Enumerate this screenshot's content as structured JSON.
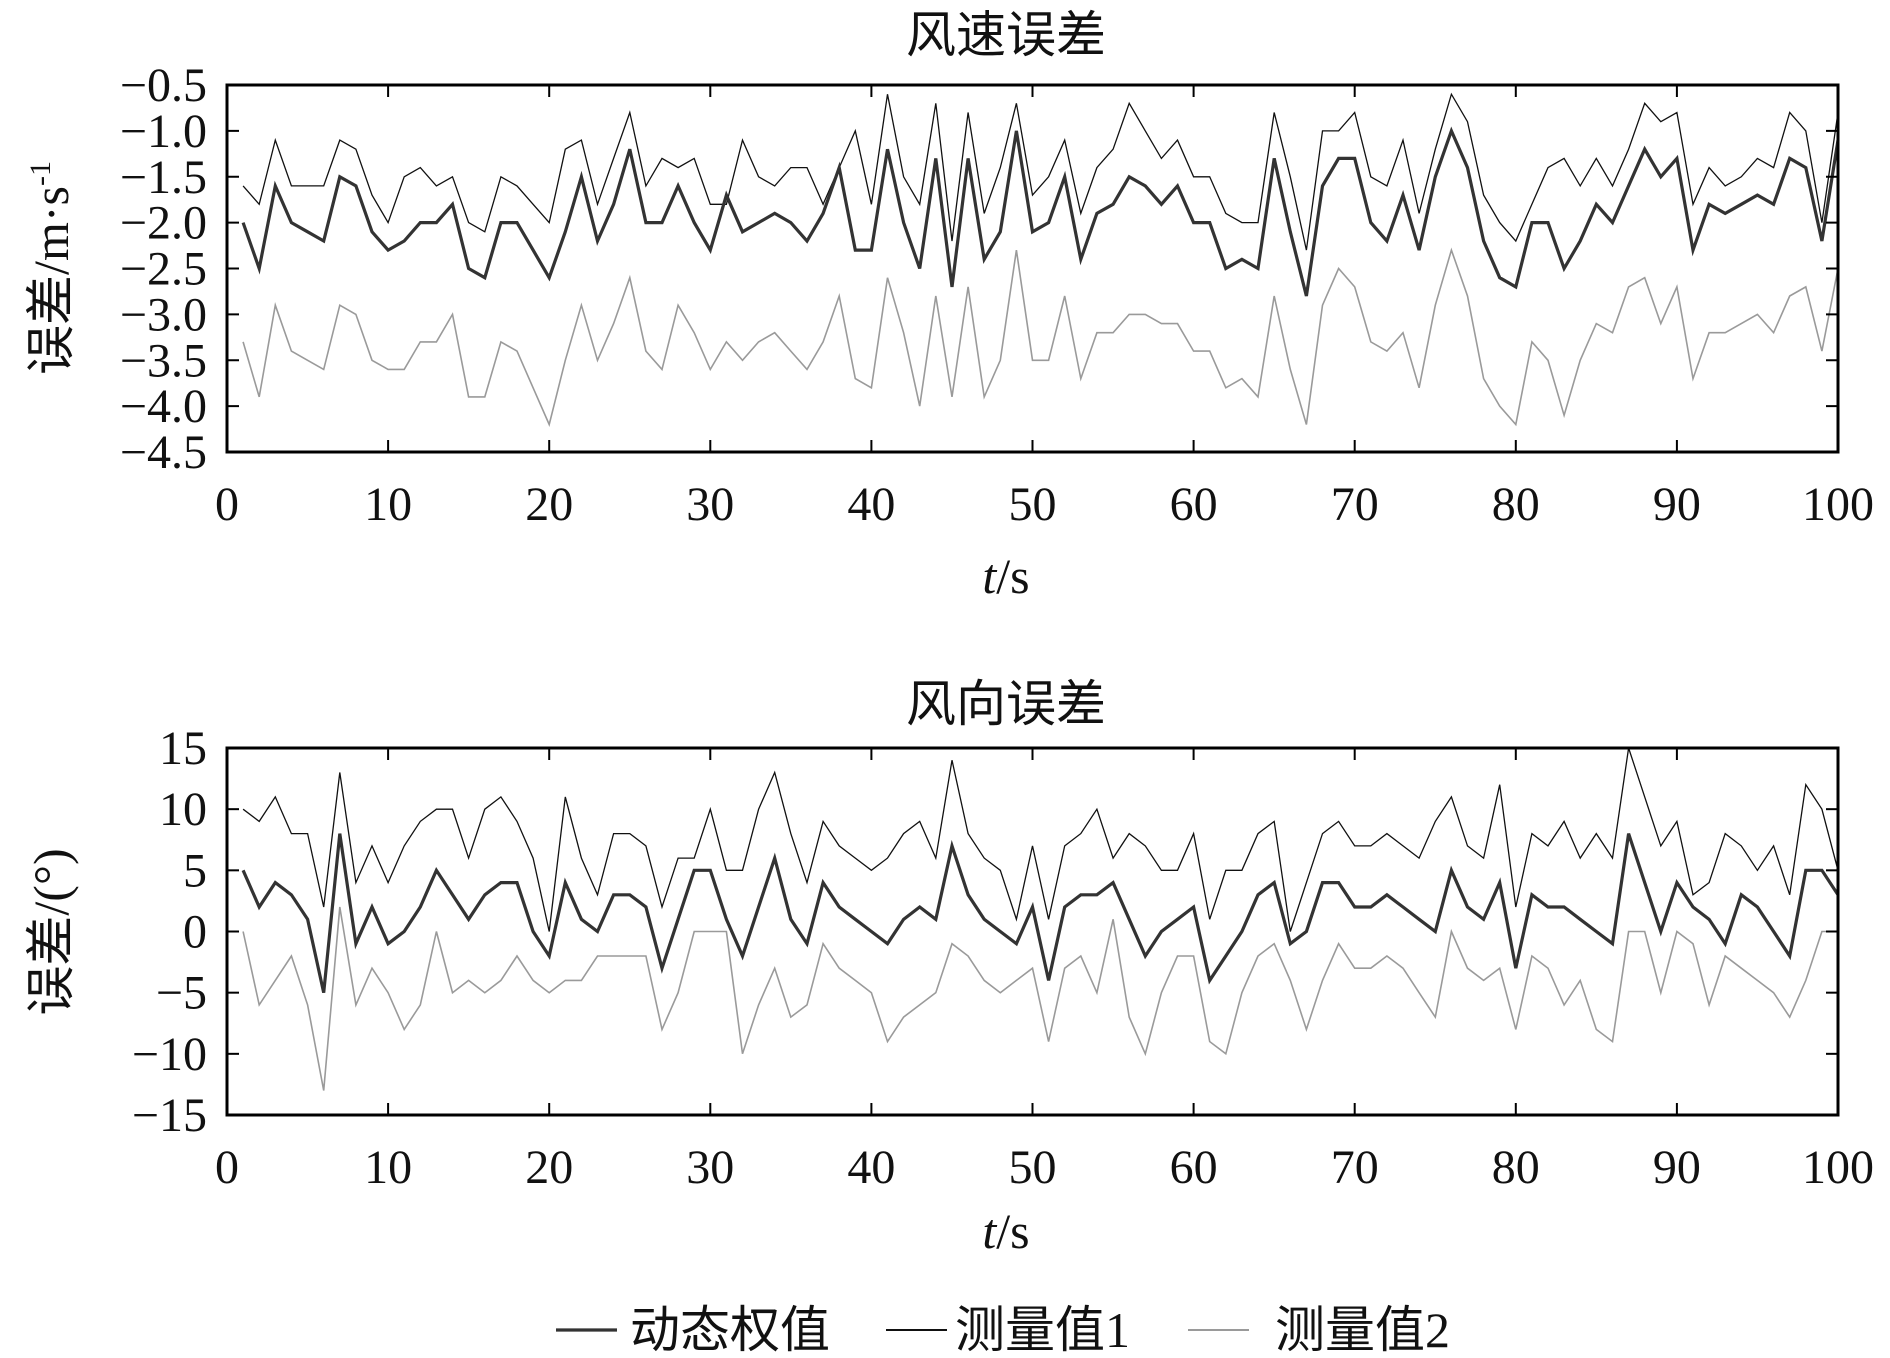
{
  "legend": {
    "items": [
      {
        "label": "动态权值",
        "color": "#333333",
        "width": 3.2
      },
      {
        "label": "测量值1",
        "color": "#111111",
        "width": 1.3
      },
      {
        "label": "测量值2",
        "color": "#9a9a9a",
        "width": 1.6
      }
    ]
  },
  "chart_data": [
    {
      "type": "line",
      "title": "风速误差",
      "xlabel_italic": "t",
      "xlabel_rest": "/s",
      "ylabel": "误差/m·s",
      "ylabel_sup": "-1",
      "xlim": [
        0,
        100
      ],
      "ylim": [
        -4.5,
        -0.5
      ],
      "xticks": [
        0,
        10,
        20,
        30,
        40,
        50,
        60,
        70,
        80,
        90,
        100
      ],
      "yticks": [
        -0.5,
        -1.0,
        -1.5,
        -2.0,
        -2.5,
        -3.0,
        -3.5,
        -4.0,
        -4.5
      ],
      "yticklabels": [
        "−0.5",
        "−1.0",
        "−1.5",
        "−2.0",
        "−2.5",
        "−3.0",
        "−3.5",
        "−4.0",
        "−4.5"
      ],
      "x": [
        1,
        2,
        3,
        4,
        5,
        6,
        7,
        8,
        9,
        10,
        11,
        12,
        13,
        14,
        15,
        16,
        17,
        18,
        19,
        20,
        21,
        22,
        23,
        24,
        25,
        26,
        27,
        28,
        29,
        30,
        31,
        32,
        33,
        34,
        35,
        36,
        37,
        38,
        39,
        40,
        41,
        42,
        43,
        44,
        45,
        46,
        47,
        48,
        49,
        50,
        51,
        52,
        53,
        54,
        55,
        56,
        57,
        58,
        59,
        60,
        61,
        62,
        63,
        64,
        65,
        66,
        67,
        68,
        69,
        70,
        71,
        72,
        73,
        74,
        75,
        76,
        77,
        78,
        79,
        80,
        81,
        82,
        83,
        84,
        85,
        86,
        87,
        88,
        89,
        90,
        91,
        92,
        93,
        94,
        95,
        96,
        97,
        98,
        99,
        100
      ],
      "series": [
        {
          "name": "测量值1",
          "values": [
            -1.6,
            -1.8,
            -1.1,
            -1.6,
            -1.6,
            -1.6,
            -1.1,
            -1.2,
            -1.7,
            -2.0,
            -1.5,
            -1.4,
            -1.6,
            -1.5,
            -2.0,
            -2.1,
            -1.5,
            -1.6,
            -1.8,
            -2.0,
            -1.2,
            -1.1,
            -1.8,
            -1.3,
            -0.8,
            -1.6,
            -1.3,
            -1.4,
            -1.3,
            -1.8,
            -1.8,
            -1.1,
            -1.5,
            -1.6,
            -1.4,
            -1.4,
            -1.8,
            -1.4,
            -1.0,
            -1.8,
            -0.6,
            -1.5,
            -1.8,
            -0.7,
            -2.2,
            -0.8,
            -1.9,
            -1.4,
            -0.7,
            -1.7,
            -1.5,
            -1.1,
            -1.9,
            -1.4,
            -1.2,
            -0.7,
            -1.0,
            -1.3,
            -1.1,
            -1.5,
            -1.5,
            -1.9,
            -2.0,
            -2.0,
            -0.8,
            -1.5,
            -2.3,
            -1.0,
            -1.0,
            -0.8,
            -1.5,
            -1.6,
            -1.1,
            -1.9,
            -1.2,
            -0.6,
            -0.9,
            -1.7,
            -2.0,
            -2.2,
            -1.8,
            -1.4,
            -1.3,
            -1.6,
            -1.3,
            -1.6,
            -1.2,
            -0.7,
            -0.9,
            -0.8,
            -1.8,
            -1.4,
            -1.6,
            -1.5,
            -1.3,
            -1.4,
            -0.8,
            -1.0,
            -2.0,
            -0.8
          ]
        },
        {
          "name": "动态权值",
          "values": [
            -2.0,
            -2.5,
            -1.6,
            -2.0,
            -2.1,
            -2.2,
            -1.5,
            -1.6,
            -2.1,
            -2.3,
            -2.2,
            -2.0,
            -2.0,
            -1.8,
            -2.5,
            -2.6,
            -2.0,
            -2.0,
            -2.3,
            -2.6,
            -2.1,
            -1.5,
            -2.2,
            -1.8,
            -1.2,
            -2.0,
            -2.0,
            -1.6,
            -2.0,
            -2.3,
            -1.7,
            -2.1,
            -2.0,
            -1.9,
            -2.0,
            -2.2,
            -1.9,
            -1.4,
            -2.3,
            -2.3,
            -1.2,
            -2.0,
            -2.5,
            -1.3,
            -2.7,
            -1.3,
            -2.4,
            -2.1,
            -1.0,
            -2.1,
            -2.0,
            -1.5,
            -2.4,
            -1.9,
            -1.8,
            -1.5,
            -1.6,
            -1.8,
            -1.6,
            -2.0,
            -2.0,
            -2.5,
            -2.4,
            -2.5,
            -1.3,
            -2.1,
            -2.8,
            -1.6,
            -1.3,
            -1.3,
            -2.0,
            -2.2,
            -1.7,
            -2.3,
            -1.5,
            -1.0,
            -1.4,
            -2.2,
            -2.6,
            -2.7,
            -2.0,
            -2.0,
            -2.5,
            -2.2,
            -1.8,
            -2.0,
            -1.6,
            -1.2,
            -1.5,
            -1.3,
            -2.3,
            -1.8,
            -1.9,
            -1.8,
            -1.7,
            -1.8,
            -1.3,
            -1.4,
            -2.2,
            -1.1
          ]
        },
        {
          "name": "测量值2",
          "values": [
            -3.3,
            -3.9,
            -2.9,
            -3.4,
            -3.5,
            -3.6,
            -2.9,
            -3.0,
            -3.5,
            -3.6,
            -3.6,
            -3.3,
            -3.3,
            -3.0,
            -3.9,
            -3.9,
            -3.3,
            -3.4,
            -3.8,
            -4.2,
            -3.5,
            -2.9,
            -3.5,
            -3.1,
            -2.6,
            -3.4,
            -3.6,
            -2.9,
            -3.2,
            -3.6,
            -3.3,
            -3.5,
            -3.3,
            -3.2,
            -3.4,
            -3.6,
            -3.3,
            -2.8,
            -3.7,
            -3.8,
            -2.6,
            -3.2,
            -4.0,
            -2.8,
            -3.9,
            -2.7,
            -3.9,
            -3.5,
            -2.3,
            -3.5,
            -3.5,
            -2.8,
            -3.7,
            -3.2,
            -3.2,
            -3.0,
            -3.0,
            -3.1,
            -3.1,
            -3.4,
            -3.4,
            -3.8,
            -3.7,
            -3.9,
            -2.8,
            -3.6,
            -4.2,
            -2.9,
            -2.5,
            -2.7,
            -3.3,
            -3.4,
            -3.2,
            -3.8,
            -2.9,
            -2.3,
            -2.8,
            -3.7,
            -4.0,
            -4.2,
            -3.3,
            -3.5,
            -4.1,
            -3.5,
            -3.1,
            -3.2,
            -2.7,
            -2.6,
            -3.1,
            -2.7,
            -3.7,
            -3.2,
            -3.2,
            -3.1,
            -3.0,
            -3.2,
            -2.8,
            -2.7,
            -3.4,
            -2.5
          ]
        }
      ]
    },
    {
      "type": "line",
      "title": "风向误差",
      "xlabel_italic": "t",
      "xlabel_rest": "/s",
      "ylabel": "误差/(°)",
      "ylabel_sup": "",
      "xlim": [
        0,
        100
      ],
      "ylim": [
        -15,
        15
      ],
      "xticks": [
        0,
        10,
        20,
        30,
        40,
        50,
        60,
        70,
        80,
        90,
        100
      ],
      "yticks": [
        15,
        10,
        5,
        0,
        -5,
        -10,
        -15
      ],
      "yticklabels": [
        "15",
        "10",
        "5",
        "0",
        "−5",
        "−10",
        "−15"
      ],
      "x": [
        1,
        2,
        3,
        4,
        5,
        6,
        7,
        8,
        9,
        10,
        11,
        12,
        13,
        14,
        15,
        16,
        17,
        18,
        19,
        20,
        21,
        22,
        23,
        24,
        25,
        26,
        27,
        28,
        29,
        30,
        31,
        32,
        33,
        34,
        35,
        36,
        37,
        38,
        39,
        40,
        41,
        42,
        43,
        44,
        45,
        46,
        47,
        48,
        49,
        50,
        51,
        52,
        53,
        54,
        55,
        56,
        57,
        58,
        59,
        60,
        61,
        62,
        63,
        64,
        65,
        66,
        67,
        68,
        69,
        70,
        71,
        72,
        73,
        74,
        75,
        76,
        77,
        78,
        79,
        80,
        81,
        82,
        83,
        84,
        85,
        86,
        87,
        88,
        89,
        90,
        91,
        92,
        93,
        94,
        95,
        96,
        97,
        98,
        99,
        100
      ],
      "series": [
        {
          "name": "测量值1",
          "values": [
            10,
            9,
            11,
            8,
            8,
            2,
            13,
            4,
            7,
            4,
            7,
            9,
            10,
            10,
            6,
            10,
            11,
            9,
            6,
            0,
            11,
            6,
            3,
            8,
            8,
            7,
            2,
            6,
            6,
            10,
            5,
            5,
            10,
            13,
            8,
            4,
            9,
            7,
            6,
            5,
            6,
            8,
            9,
            6,
            14,
            8,
            6,
            5,
            1,
            7,
            1,
            7,
            8,
            10,
            6,
            8,
            7,
            5,
            5,
            8,
            1,
            5,
            5,
            8,
            9,
            0,
            4,
            8,
            9,
            7,
            7,
            8,
            7,
            6,
            9,
            11,
            7,
            6,
            12,
            2,
            8,
            7,
            9,
            6,
            8,
            6,
            15,
            11,
            7,
            9,
            3,
            4,
            8,
            7,
            5,
            7,
            3,
            12,
            10,
            5
          ]
        },
        {
          "name": "动态权值",
          "values": [
            5,
            2,
            4,
            3,
            1,
            -5,
            8,
            -1,
            2,
            -1,
            0,
            2,
            5,
            3,
            1,
            3,
            4,
            4,
            0,
            -2,
            4,
            1,
            0,
            3,
            3,
            2,
            -3,
            1,
            5,
            5,
            1,
            -2,
            2,
            6,
            1,
            -1,
            4,
            2,
            1,
            0,
            -1,
            1,
            2,
            1,
            7,
            3,
            1,
            0,
            -1,
            2,
            -4,
            2,
            3,
            3,
            4,
            1,
            -2,
            0,
            1,
            2,
            -4,
            -2,
            0,
            3,
            4,
            -1,
            0,
            4,
            4,
            2,
            2,
            3,
            2,
            1,
            0,
            5,
            2,
            1,
            4,
            -3,
            3,
            2,
            2,
            1,
            0,
            -1,
            8,
            4,
            0,
            4,
            2,
            1,
            -1,
            3,
            2,
            0,
            -2,
            5,
            5,
            3
          ]
        },
        {
          "name": "测量值2",
          "values": [
            0,
            -6,
            -4,
            -2,
            -6,
            -13,
            2,
            -6,
            -3,
            -5,
            -8,
            -6,
            0,
            -5,
            -4,
            -5,
            -4,
            -2,
            -4,
            -5,
            -4,
            -4,
            -2,
            -2,
            -2,
            -2,
            -8,
            -5,
            0,
            0,
            0,
            -10,
            -6,
            -3,
            -7,
            -6,
            -1,
            -3,
            -4,
            -5,
            -9,
            -7,
            -6,
            -5,
            -1,
            -2,
            -4,
            -5,
            -4,
            -3,
            -9,
            -3,
            -2,
            -5,
            1,
            -7,
            -10,
            -5,
            -2,
            -2,
            -9,
            -10,
            -5,
            -2,
            -1,
            -4,
            -8,
            -4,
            -1,
            -3,
            -3,
            -2,
            -3,
            -5,
            -7,
            0,
            -3,
            -4,
            -3,
            -8,
            -2,
            -3,
            -6,
            -4,
            -8,
            -9,
            0,
            0,
            -5,
            0,
            -1,
            -6,
            -2,
            -3,
            -4,
            -5,
            -7,
            -4,
            0,
            0
          ]
        }
      ]
    }
  ]
}
